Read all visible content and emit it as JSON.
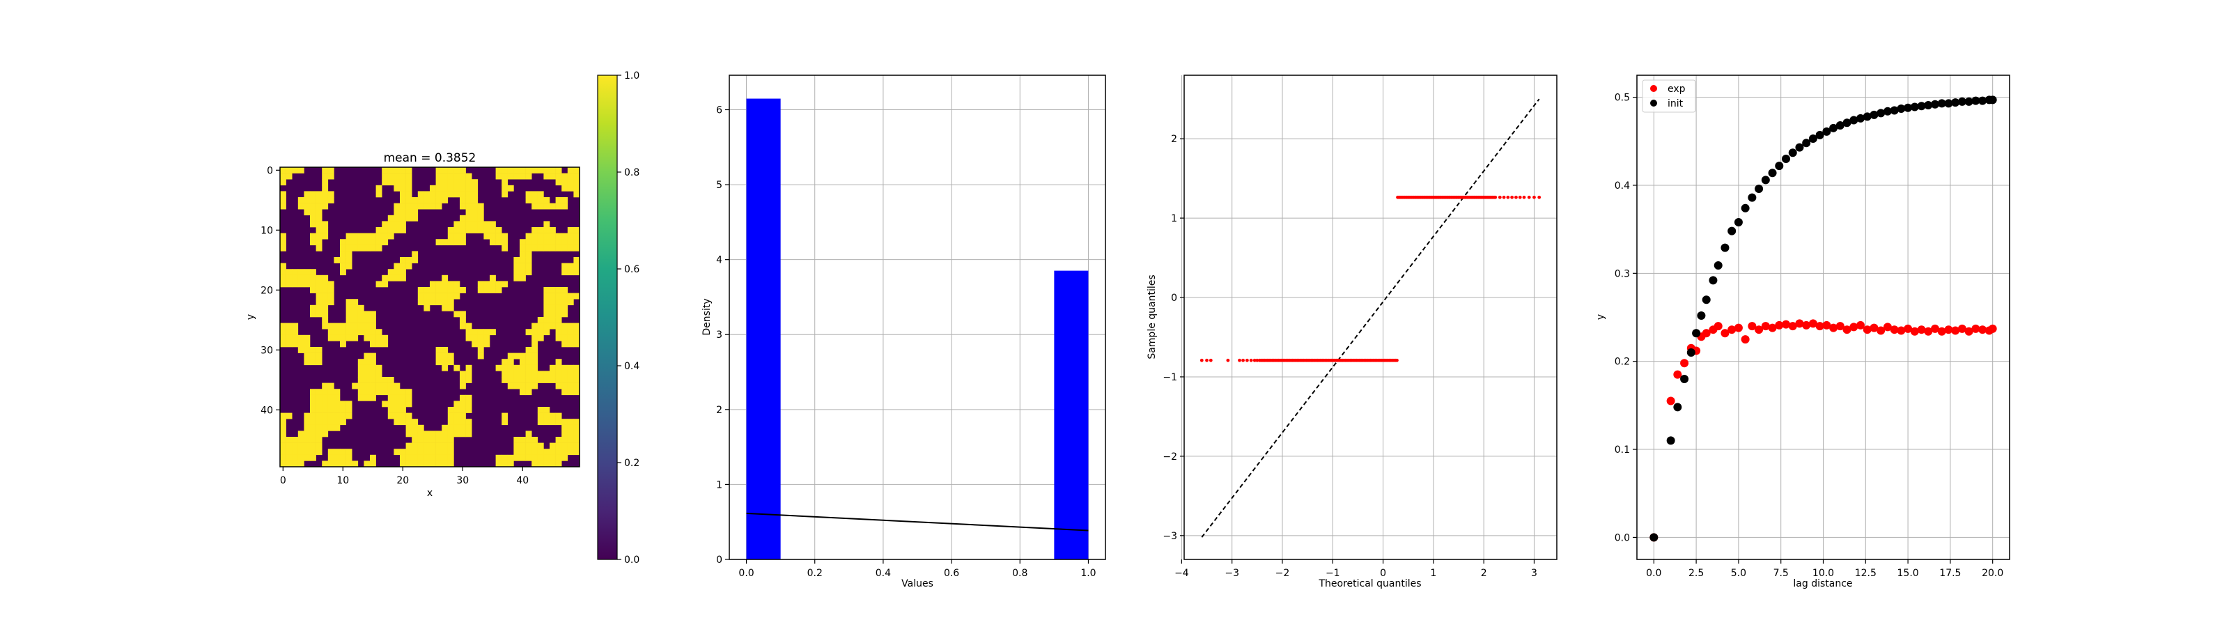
{
  "colors": {
    "binary_zero": "#440154",
    "binary_one": "#fde725",
    "hist_bar": "#0000ff",
    "exp_series": "#ff0000",
    "init_series": "#000000",
    "grid": "#b0b0b0",
    "qq_points": "#ff0000",
    "qq_line": "#000000"
  },
  "chart_data": [
    {
      "type": "heatmap",
      "title": "mean = 0.3852",
      "xlabel": "x",
      "ylabel": "y",
      "grid_size": [
        50,
        50
      ],
      "value_levels": [
        0,
        1
      ],
      "mean": 0.3852,
      "xticks": [
        "0",
        "10",
        "20",
        "30",
        "40"
      ],
      "yticks": [
        "0",
        "10",
        "20",
        "30",
        "40"
      ],
      "xlim": [
        -0.5,
        49.5
      ],
      "ylim": [
        49.5,
        -0.5
      ],
      "colorbar": {
        "cmap": "viridis",
        "range": [
          0.0,
          1.0
        ],
        "ticks": [
          "0.0",
          "0.2",
          "0.4",
          "0.6",
          "0.8",
          "1.0"
        ]
      }
    },
    {
      "type": "bar",
      "xlabel": "Values",
      "ylabel": "Density",
      "bars": [
        {
          "x0": 0.0,
          "x1": 0.1,
          "value": 6.148
        },
        {
          "x0": 0.9,
          "x1": 1.0,
          "value": 3.852
        }
      ],
      "line": {
        "x": [
          0.0,
          1.0
        ],
        "y": [
          0.6148,
          0.3852
        ]
      },
      "xlim": [
        -0.05,
        1.05
      ],
      "ylim": [
        0,
        6.46
      ],
      "xticks": [
        "0.0",
        "0.2",
        "0.4",
        "0.6",
        "0.8",
        "1.0"
      ],
      "yticks": [
        "0",
        "1",
        "2",
        "3",
        "4",
        "5",
        "6"
      ],
      "grid": true
    },
    {
      "type": "scatter",
      "xlabel": "Theoretical quantiles",
      "ylabel": "Sample quantiles",
      "groups": [
        {
          "y": -0.792,
          "x_from": -3.6,
          "x_to": 0.29,
          "dense_from": -2.45
        },
        {
          "y": 1.262,
          "x_from": 0.29,
          "x_to": 3.1,
          "dense_to": 2.25
        }
      ],
      "reference_line": {
        "x": [
          -3.6,
          3.1
        ],
        "y": [
          -3.02,
          2.5
        ]
      },
      "xlim": [
        -3.95,
        3.45
      ],
      "ylim": [
        -3.3,
        2.8
      ],
      "xticks": [
        "-4",
        "-3",
        "-2",
        "-1",
        "0",
        "1",
        "2",
        "3"
      ],
      "yticks": [
        "-3",
        "-2",
        "-1",
        "0",
        "1",
        "2"
      ],
      "grid": true
    },
    {
      "type": "scatter",
      "xlabel": "lag distance",
      "ylabel": "y",
      "series": [
        {
          "name": "exp",
          "x": [
            0.0,
            1.0,
            1.4,
            1.8,
            2.2,
            2.5,
            2.8,
            3.1,
            3.5,
            3.8,
            4.2,
            4.6,
            5.0,
            5.4,
            5.8,
            6.2,
            6.6,
            7.0,
            7.4,
            7.8,
            8.2,
            8.6,
            9.0,
            9.4,
            9.8,
            10.2,
            10.6,
            11.0,
            11.4,
            11.8,
            12.2,
            12.6,
            13.0,
            13.4,
            13.8,
            14.2,
            14.6,
            15.0,
            15.4,
            15.8,
            16.2,
            16.6,
            17.0,
            17.4,
            17.8,
            18.2,
            18.6,
            19.0,
            19.4,
            19.8,
            20.0
          ],
          "y": [
            0.0,
            0.155,
            0.185,
            0.198,
            0.215,
            0.212,
            0.228,
            0.232,
            0.236,
            0.24,
            0.232,
            0.236,
            0.238,
            0.225,
            0.24,
            0.236,
            0.24,
            0.238,
            0.241,
            0.242,
            0.24,
            0.243,
            0.241,
            0.243,
            0.24,
            0.241,
            0.238,
            0.24,
            0.236,
            0.239,
            0.241,
            0.236,
            0.238,
            0.235,
            0.239,
            0.236,
            0.235,
            0.237,
            0.234,
            0.236,
            0.234,
            0.237,
            0.234,
            0.236,
            0.235,
            0.237,
            0.234,
            0.237,
            0.236,
            0.235,
            0.237
          ]
        },
        {
          "name": "init",
          "model": "0.5*(1-exp(-3h/a)), a=12",
          "x": [
            0.0,
            1.0,
            1.4,
            1.8,
            2.2,
            2.5,
            2.8,
            3.1,
            3.5,
            3.8,
            4.2,
            4.6,
            5.0,
            5.4,
            5.8,
            6.2,
            6.6,
            7.0,
            7.4,
            7.8,
            8.2,
            8.6,
            9.0,
            9.4,
            9.8,
            10.2,
            10.6,
            11.0,
            11.4,
            11.8,
            12.2,
            12.6,
            13.0,
            13.4,
            13.8,
            14.2,
            14.6,
            15.0,
            15.4,
            15.8,
            16.2,
            16.6,
            17.0,
            17.4,
            17.8,
            18.2,
            18.6,
            19.0,
            19.4,
            19.8,
            20.0
          ],
          "y": [
            0.0,
            0.11,
            0.148,
            0.18,
            0.21,
            0.232,
            0.252,
            0.27,
            0.292,
            0.309,
            0.329,
            0.348,
            0.358,
            0.374,
            0.386,
            0.396,
            0.406,
            0.414,
            0.422,
            0.43,
            0.437,
            0.443,
            0.448,
            0.453,
            0.457,
            0.461,
            0.465,
            0.468,
            0.471,
            0.474,
            0.476,
            0.478,
            0.48,
            0.482,
            0.484,
            0.485,
            0.487,
            0.488,
            0.489,
            0.49,
            0.491,
            0.492,
            0.493,
            0.493,
            0.494,
            0.495,
            0.495,
            0.496,
            0.496,
            0.497,
            0.497
          ]
        }
      ],
      "xlim": [
        -1.0,
        21.0
      ],
      "ylim": [
        -0.025,
        0.525
      ],
      "xticks": [
        "0.0",
        "2.5",
        "5.0",
        "7.5",
        "10.0",
        "12.5",
        "15.0",
        "17.5",
        "20.0"
      ],
      "yticks": [
        "0.0",
        "0.1",
        "0.2",
        "0.3",
        "0.4",
        "0.5"
      ],
      "legend": "top-left",
      "grid": true
    }
  ]
}
